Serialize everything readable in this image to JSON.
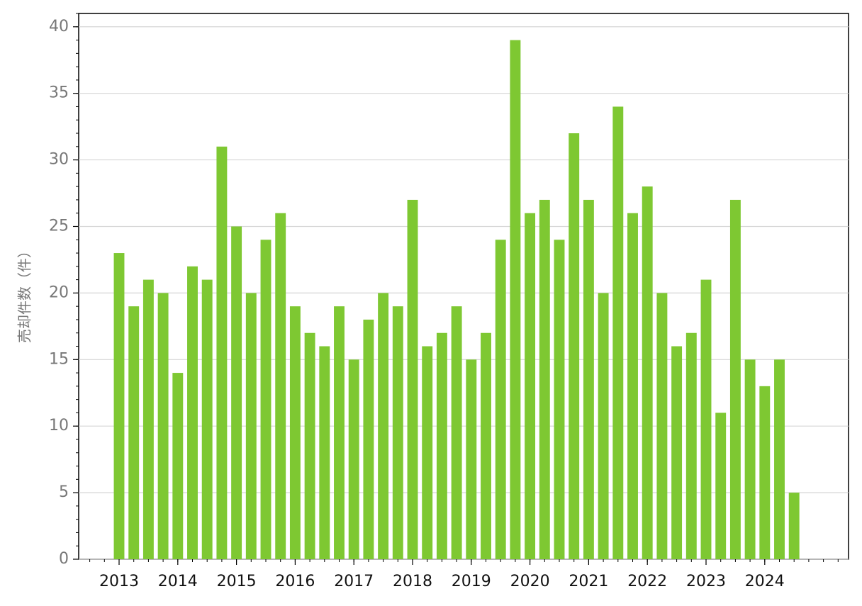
{
  "chart_data": {
    "type": "bar",
    "y_label": "売却件数（件）",
    "categories": [
      "2013",
      null,
      null,
      null,
      "2014",
      null,
      null,
      null,
      "2015",
      null,
      null,
      null,
      "2016",
      null,
      null,
      null,
      "2017",
      null,
      null,
      null,
      "2018",
      null,
      null,
      null,
      "2019",
      null,
      null,
      null,
      "2020",
      null,
      null,
      null,
      "2021",
      null,
      null,
      null,
      "2022",
      null,
      null,
      null,
      "2023",
      null,
      null,
      null,
      "2024",
      null,
      null
    ],
    "values": [
      23,
      19,
      21,
      20,
      14,
      22,
      21,
      31,
      25,
      20,
      24,
      26,
      19,
      17,
      16,
      19,
      15,
      18,
      20,
      19,
      27,
      16,
      17,
      19,
      15,
      17,
      24,
      39,
      26,
      27,
      24,
      32,
      27,
      20,
      34,
      26,
      28,
      20,
      16,
      17,
      21,
      11,
      27,
      15,
      13,
      15,
      5
    ],
    "color": "#7ec832",
    "ylim": [
      0,
      41
    ],
    "yticks": [
      0,
      5,
      10,
      15,
      20,
      25,
      30,
      35,
      40
    ],
    "grid": true
  }
}
